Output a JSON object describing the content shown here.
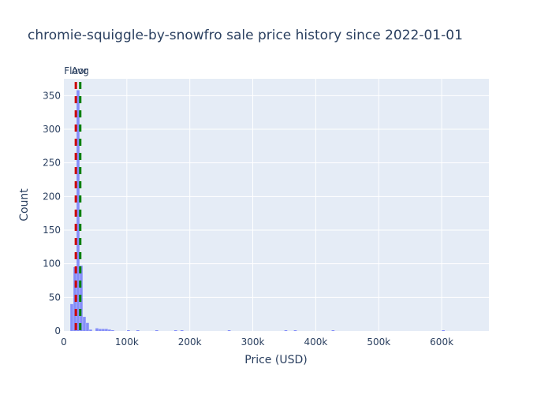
{
  "chart_data": {
    "type": "histogram",
    "title": "chromie-squiggle-by-snowfro sale price history since 2022-01-01",
    "xlabel": "Price (USD)",
    "ylabel": "Count",
    "xlim": [
      0,
      675000
    ],
    "ylim": [
      0,
      375
    ],
    "x_ticks": [
      {
        "value": 0,
        "label": "0"
      },
      {
        "value": 100000,
        "label": "100k"
      },
      {
        "value": 200000,
        "label": "200k"
      },
      {
        "value": 300000,
        "label": "300k"
      },
      {
        "value": 400000,
        "label": "400k"
      },
      {
        "value": 500000,
        "label": "500k"
      },
      {
        "value": 600000,
        "label": "600k"
      }
    ],
    "y_ticks": [
      {
        "value": 0,
        "label": "0"
      },
      {
        "value": 50,
        "label": "50"
      },
      {
        "value": 100,
        "label": "100"
      },
      {
        "value": 150,
        "label": "150"
      },
      {
        "value": 200,
        "label": "200"
      },
      {
        "value": 250,
        "label": "250"
      },
      {
        "value": 300,
        "label": "300"
      },
      {
        "value": 350,
        "label": "350"
      }
    ],
    "bin_width": 5000,
    "bins": [
      {
        "x0": 10000,
        "count": 40
      },
      {
        "x0": 15000,
        "count": 95
      },
      {
        "x0": 20000,
        "count": 358
      },
      {
        "x0": 25000,
        "count": 97
      },
      {
        "x0": 30000,
        "count": 21
      },
      {
        "x0": 35000,
        "count": 12
      },
      {
        "x0": 40000,
        "count": 2
      },
      {
        "x0": 50000,
        "count": 4
      },
      {
        "x0": 55000,
        "count": 3
      },
      {
        "x0": 60000,
        "count": 3
      },
      {
        "x0": 65000,
        "count": 3
      },
      {
        "x0": 70000,
        "count": 2
      },
      {
        "x0": 75000,
        "count": 1
      },
      {
        "x0": 100000,
        "count": 1
      },
      {
        "x0": 115000,
        "count": 1
      },
      {
        "x0": 145000,
        "count": 1
      },
      {
        "x0": 175000,
        "count": 1
      },
      {
        "x0": 185000,
        "count": 1
      },
      {
        "x0": 260000,
        "count": 1
      },
      {
        "x0": 350000,
        "count": 1
      },
      {
        "x0": 365000,
        "count": 1
      },
      {
        "x0": 425000,
        "count": 1
      },
      {
        "x0": 600000,
        "count": 1
      }
    ],
    "bar_color": "#636efa",
    "reference_lines": [
      {
        "label": "Floor",
        "value": 19000,
        "color": "#cc0000"
      },
      {
        "label": "Avg",
        "value": 26000,
        "color": "#008000"
      }
    ],
    "plot_bgcolor": "#e5ecf6",
    "grid": true
  }
}
